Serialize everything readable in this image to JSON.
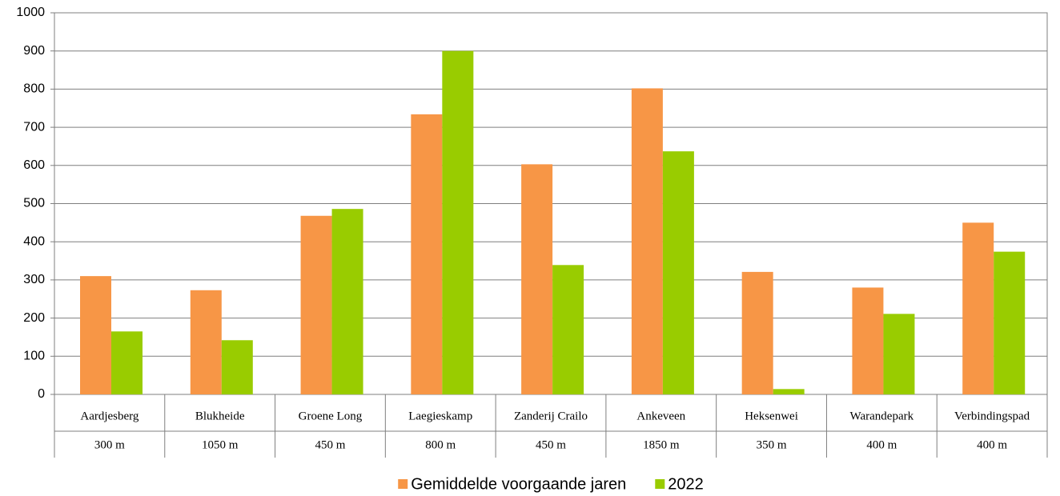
{
  "chart_data": {
    "type": "bar",
    "categories": [
      "Aardjesberg",
      "Blukheide",
      "Groene Long",
      "Laegieskamp",
      "Zanderij Crailo",
      "Ankeveen",
      "Heksenwei",
      "Warandepark",
      "Verbindingspad"
    ],
    "category_lengths": [
      "300 m",
      "1050 m",
      "450 m",
      "800 m",
      "450 m",
      "1850 m",
      "350 m",
      "400 m",
      "400 m"
    ],
    "series": [
      {
        "name": "Gemiddelde voorgaande jaren",
        "color": "#f79646",
        "values": [
          310,
          273,
          468,
          734,
          603,
          802,
          321,
          280,
          450
        ]
      },
      {
        "name": "2022",
        "color": "#99cc00",
        "values": [
          165,
          142,
          486,
          900,
          339,
          637,
          14,
          211,
          374
        ]
      }
    ],
    "ylim": [
      0,
      1000
    ],
    "yticks": [
      0,
      100,
      200,
      300,
      400,
      500,
      600,
      700,
      800,
      900,
      1000
    ],
    "grid": true,
    "legend": "bottom"
  }
}
